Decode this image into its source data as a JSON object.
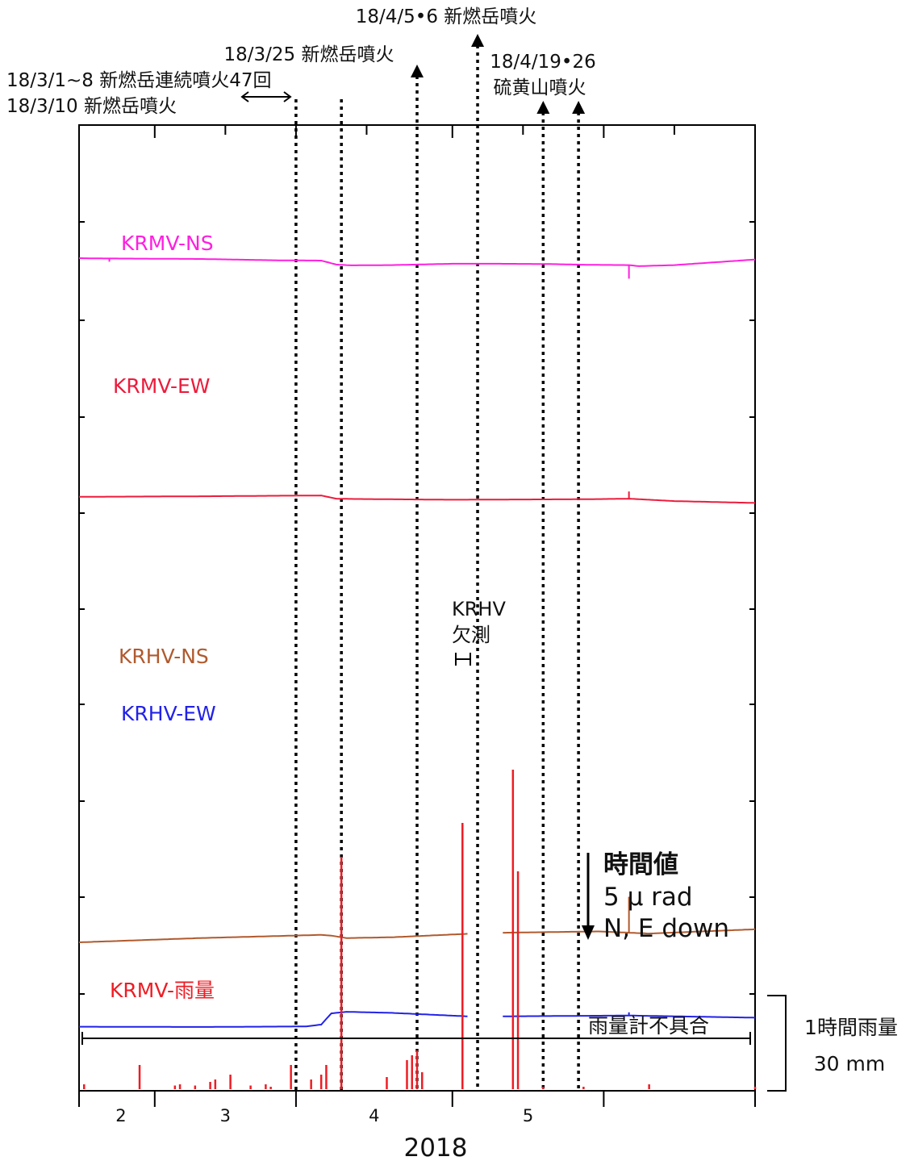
{
  "chart_data": {
    "type": "line",
    "xlabel": "2018",
    "x_range": [
      "2018-01-17",
      "2018-05-31"
    ],
    "month_ticks": [
      "2018-02-01",
      "2018-03-01",
      "2018-04-01",
      "2018-05-01"
    ],
    "month_labels": [
      "2",
      "3",
      "4",
      "5"
    ],
    "y_axis_labels": false,
    "series": [
      {
        "name": "KRMV-NS",
        "color": "#ff1fe0",
        "points": [
          [
            "2018-01-17",
            5.0
          ],
          [
            "2018-01-21",
            5.05
          ],
          [
            "2018-02-10",
            5.15
          ],
          [
            "2018-02-25",
            5.4
          ],
          [
            "2018-03-06",
            5.45
          ],
          [
            "2018-03-09",
            6.2
          ],
          [
            "2018-03-12",
            6.35
          ],
          [
            "2018-03-20",
            6.3
          ],
          [
            "2018-04-01",
            6.05
          ],
          [
            "2018-04-10",
            6.05
          ],
          [
            "2018-04-20",
            6.1
          ],
          [
            "2018-04-28",
            6.25
          ],
          [
            "2018-05-06",
            6.3
          ],
          [
            "2018-05-08",
            6.5
          ],
          [
            "2018-05-15",
            6.3
          ],
          [
            "2018-05-31",
            5.25
          ]
        ],
        "spikes": [
          [
            "2018-01-23",
            0.4
          ],
          [
            "2018-05-06",
            1.7
          ]
        ]
      },
      {
        "name": "KRMV-EW",
        "color": "#ec1c3c",
        "points": [
          [
            "2018-01-17",
            23.0
          ],
          [
            "2018-02-10",
            22.9
          ],
          [
            "2018-02-25",
            22.8
          ],
          [
            "2018-03-06",
            22.75
          ],
          [
            "2018-03-09",
            23.35
          ],
          [
            "2018-03-12",
            23.4
          ],
          [
            "2018-04-01",
            23.55
          ],
          [
            "2018-04-28",
            23.45
          ],
          [
            "2018-05-06",
            23.35
          ],
          [
            "2018-05-15",
            23.8
          ],
          [
            "2018-05-31",
            24.15
          ]
        ],
        "spikes": [
          [
            "2018-05-06",
            -0.9
          ]
        ]
      },
      {
        "name": "KRHV-NS",
        "color": "#b05a2e",
        "points": [
          [
            "2018-01-17",
            55.0
          ],
          [
            "2018-02-10",
            54.2
          ],
          [
            "2018-03-06",
            53.6
          ],
          [
            "2018-03-08",
            53.75
          ],
          [
            "2018-03-11",
            54.2
          ],
          [
            "2018-03-20",
            54.05
          ],
          [
            "2018-04-04",
            53.4
          ],
          [
            null,
            null
          ],
          [
            "2018-04-11",
            53.2
          ],
          [
            "2018-04-30",
            52.95
          ],
          [
            "2018-05-10",
            53.35
          ],
          [
            "2018-05-31",
            52.55
          ]
        ],
        "spikes": [
          [
            "2018-05-06",
            -4.5
          ]
        ]
      },
      {
        "name": "KRHV-EW",
        "color": "#2222e8",
        "points": [
          [
            "2018-01-17",
            61.0
          ],
          [
            "2018-02-10",
            61.05
          ],
          [
            "2018-03-03",
            60.95
          ],
          [
            "2018-03-06",
            60.6
          ],
          [
            "2018-03-08",
            58.5
          ],
          [
            "2018-03-11",
            58.2
          ],
          [
            "2018-03-20",
            58.4
          ],
          [
            "2018-04-04",
            59.05
          ],
          [
            null,
            null
          ],
          [
            "2018-04-11",
            59.05
          ],
          [
            "2018-05-06",
            58.9
          ],
          [
            "2018-05-31",
            59.3
          ]
        ],
        "spikes": [
          [
            "2018-05-06",
            -0.4
          ]
        ]
      }
    ],
    "rainfall": {
      "name": "KRMV-雨量",
      "color": "#ee1c24",
      "unit_label": "1時間雨量",
      "scale_label": "30 mm",
      "bars": [
        [
          "2018-01-18",
          2
        ],
        [
          "2018-01-29",
          10
        ],
        [
          "2018-02-05",
          1.5
        ],
        [
          "2018-02-06",
          2
        ],
        [
          "2018-02-09",
          1.5
        ],
        [
          "2018-02-12",
          3
        ],
        [
          "2018-02-13",
          4
        ],
        [
          "2018-02-16",
          6
        ],
        [
          "2018-02-20",
          1.5
        ],
        [
          "2018-02-23",
          2
        ],
        [
          "2018-02-24",
          1
        ],
        [
          "2018-02-28",
          10
        ],
        [
          "2018-03-04",
          4
        ],
        [
          "2018-03-06",
          6
        ],
        [
          "2018-03-07",
          10
        ],
        [
          "2018-03-10",
          96
        ],
        [
          "2018-03-19",
          5
        ],
        [
          "2018-03-23",
          12
        ],
        [
          "2018-03-24",
          14
        ],
        [
          "2018-03-25",
          16
        ],
        [
          "2018-03-26",
          7
        ],
        [
          "2018-04-03",
          110
        ],
        [
          "2018-04-13",
          132
        ],
        [
          "2018-04-14",
          90
        ],
        [
          "2018-04-19",
          1
        ],
        [
          "2018-04-27",
          1
        ],
        [
          "2018-05-10",
          2
        ],
        [
          "2018-05-31",
          1
        ]
      ],
      "malfunction_label": "雨量計不具合",
      "malfunction_range": [
        "2018-01-17",
        "2018-05-31"
      ]
    },
    "events": [
      {
        "date": "2018-03-01",
        "label": ""
      },
      {
        "date": "2018-03-10",
        "label": ""
      },
      {
        "date": "2018-03-25",
        "label": "18/3/25 新燃岳噴火"
      },
      {
        "date": "2018-04-06",
        "label": "18/4/5•6 新燃岳噴火"
      },
      {
        "date": "2018-04-19",
        "label": ""
      },
      {
        "date": "2018-04-26",
        "label": ""
      }
    ],
    "event_labels": {
      "mar1": "18/3/1~8 新燃岳連続噴火47回",
      "mar10": "18/3/10 新燃岳噴火",
      "apr19_line1": "18/4/19•26",
      "apr19_line2": "硫黄山噴火"
    },
    "gap_annotation": {
      "line1": "KRHV",
      "line2": "欠測",
      "range": [
        "2018-04-05",
        "2018-04-10"
      ]
    },
    "scale_bar": {
      "line1": "時間値",
      "line2": "5 μ rad",
      "line3": "N, E down"
    }
  }
}
